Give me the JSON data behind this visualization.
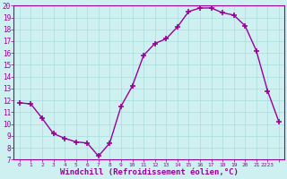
{
  "x": [
    0,
    1,
    2,
    3,
    4,
    5,
    6,
    7,
    8,
    9,
    10,
    11,
    12,
    13,
    14,
    15,
    16,
    17,
    18,
    19,
    20,
    21,
    22,
    23
  ],
  "y": [
    11.8,
    11.7,
    10.5,
    9.2,
    8.8,
    8.5,
    8.4,
    7.3,
    8.4,
    11.5,
    13.2,
    15.8,
    16.8,
    17.2,
    18.2,
    19.5,
    19.8,
    19.8,
    19.4,
    19.2,
    18.3,
    16.2,
    12.8,
    10.2
  ],
  "line_color": "#990099",
  "marker": "+",
  "marker_size": 4,
  "marker_lw": 1.2,
  "xlabel": "Windchill (Refroidissement éolien,°C)",
  "xlabel_color": "#990099",
  "xlabel_fontsize": 6.5,
  "bg_color": "#cef0f0",
  "grid_color": "#aadddd",
  "tick_color": "#990099",
  "tick_labelcolor": "#990099",
  "ylim": [
    7,
    20
  ],
  "xlim": [
    -0.5,
    23.5
  ],
  "yticks": [
    7,
    8,
    9,
    10,
    11,
    12,
    13,
    14,
    15,
    16,
    17,
    18,
    19,
    20
  ],
  "xticks": [
    0,
    1,
    2,
    3,
    4,
    5,
    6,
    7,
    8,
    9,
    10,
    11,
    12,
    13,
    14,
    15,
    16,
    17,
    18,
    19,
    20,
    21,
    22,
    23
  ],
  "xtick_labels": [
    "0",
    "1",
    "2",
    "3",
    "4",
    "5",
    "6",
    "7",
    "8",
    "9",
    "10",
    "11",
    "12",
    "13",
    "14",
    "15",
    "16",
    "17",
    "18",
    "19",
    "20",
    "21",
    "2223",
    ""
  ],
  "spine_color": "#990099",
  "line_width": 1.0
}
